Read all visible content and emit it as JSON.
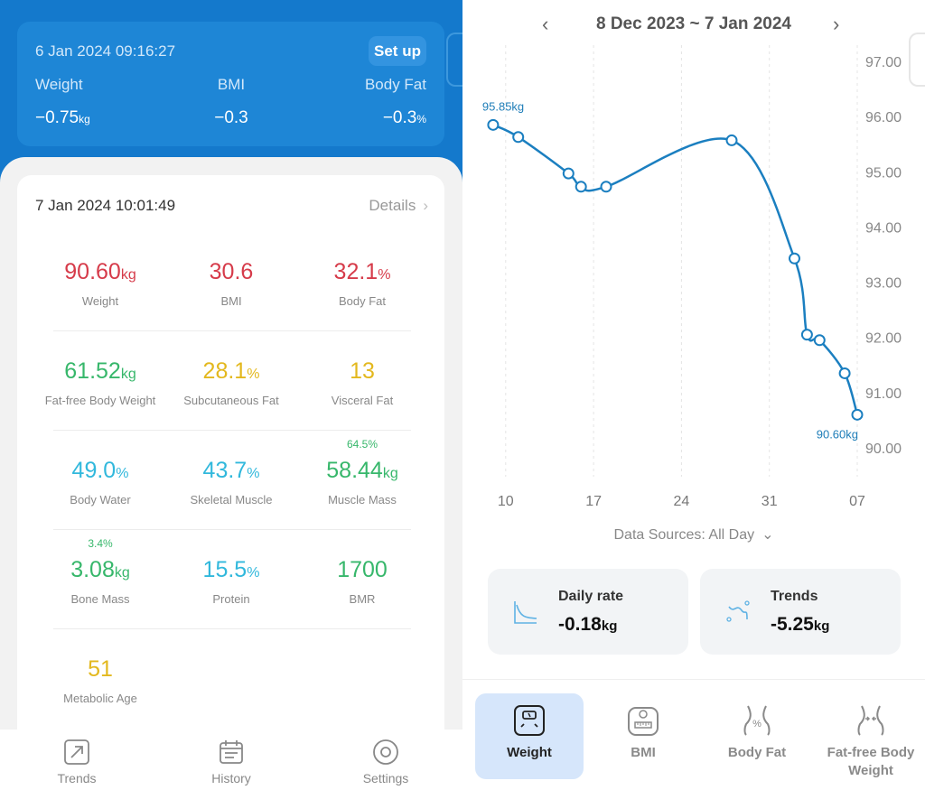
{
  "last_change": {
    "timestamp": "6 Jan 2024 09:16:27",
    "setup_label": "Set up",
    "weight": {
      "label": "Weight",
      "value": "−0.75",
      "unit": "kg"
    },
    "bmi": {
      "label": "BMI",
      "value": "−0.3"
    },
    "body_fat": {
      "label": "Body Fat",
      "value": "−0.3",
      "unit": "%"
    }
  },
  "measurement": {
    "timestamp": "7 Jan 2024 10:01:49",
    "details_label": "Details",
    "metrics": [
      {
        "value": "90.60",
        "unit": "kg",
        "label": "Weight",
        "top": "",
        "color": "#d63b4a"
      },
      {
        "value": "30.6",
        "unit": "",
        "label": "BMI",
        "top": "",
        "color": "#d63b4a"
      },
      {
        "value": "32.1",
        "unit": "%",
        "label": "Body Fat",
        "top": "",
        "color": "#d63b4a"
      },
      {
        "value": "61.52",
        "unit": "kg",
        "label": "Fat-free Body Weight",
        "top": "",
        "color": "#37b76b"
      },
      {
        "value": "28.1",
        "unit": "%",
        "label": "Subcutaneous Fat",
        "top": "",
        "color": "#e3b81e"
      },
      {
        "value": "13",
        "unit": "",
        "label": "Visceral Fat",
        "top": "",
        "color": "#e3b81e"
      },
      {
        "value": "49.0",
        "unit": "%",
        "label": "Body Water",
        "top": "",
        "color": "#31b8dc"
      },
      {
        "value": "43.7",
        "unit": "%",
        "label": "Skeletal Muscle",
        "top": "",
        "color": "#31b8dc"
      },
      {
        "value": "58.44",
        "unit": "kg",
        "label": "Muscle Mass",
        "top": "64.5%",
        "color": "#37b76b"
      },
      {
        "value": "3.08",
        "unit": "kg",
        "label": "Bone Mass",
        "top": "3.4%",
        "color": "#37b76b"
      },
      {
        "value": "15.5",
        "unit": "%",
        "label": "Protein",
        "top": "",
        "color": "#31b8dc"
      },
      {
        "value": "1700",
        "unit": "",
        "label": "BMR",
        "top": "",
        "color": "#37b76b"
      },
      {
        "value": "51",
        "unit": "",
        "label": "Metabolic Age",
        "top": "",
        "color": "#e3b81e"
      }
    ]
  },
  "left_nav": [
    {
      "label": "Trends",
      "icon": "trend-arrow-icon"
    },
    {
      "label": "History",
      "icon": "calendar-icon"
    },
    {
      "label": "Settings",
      "icon": "settings-icon"
    }
  ],
  "range": {
    "title": "8 Dec 2023 ~ 7 Jan 2024",
    "prev": "‹",
    "next": "›"
  },
  "chart_data": {
    "type": "line",
    "series": [
      {
        "x": [
          "2023-12-09",
          "2023-12-11",
          "2023-12-15",
          "2023-12-16",
          "2023-12-18",
          "2023-12-28",
          "2024-01-02",
          "2024-01-03",
          "2024-01-04",
          "2024-01-06",
          "2024-01-07"
        ],
        "values": [
          95.85,
          95.63,
          94.97,
          94.73,
          94.73,
          95.57,
          93.43,
          92.05,
          91.95,
          91.35,
          90.6
        ]
      }
    ],
    "x_ticks": [
      "10",
      "17",
      "24",
      "31",
      "07"
    ],
    "y_ticks": [
      "97.00",
      "96.00",
      "95.00",
      "94.00",
      "93.00",
      "92.00",
      "91.00",
      "90.00"
    ],
    "ylim": [
      90,
      97
    ],
    "xlim": [
      "2023-12-08",
      "2024-01-07"
    ],
    "annotations": [
      {
        "text": "95.85kg",
        "anchor": "first"
      },
      {
        "text": "90.60kg",
        "anchor": "last"
      }
    ],
    "line_color": "#1b7fc0",
    "grid": "vertical dashed"
  },
  "data_sources": {
    "label": "Data Sources: All Day"
  },
  "stats": {
    "daily_rate": {
      "label": "Daily rate",
      "value": "-0.18",
      "unit": "kg"
    },
    "trends": {
      "label": "Trends",
      "value": "-5.25",
      "unit": "kg"
    }
  },
  "right_tabs": [
    {
      "label": "Weight",
      "icon": "scale-icon",
      "active": true
    },
    {
      "label": "BMI",
      "icon": "bmi-scale-icon",
      "active": false
    },
    {
      "label": "Body Fat",
      "icon": "body-fat-icon",
      "active": false
    },
    {
      "label": "Fat-free Body Weight",
      "icon": "fat-free-body-icon",
      "active": false
    }
  ]
}
